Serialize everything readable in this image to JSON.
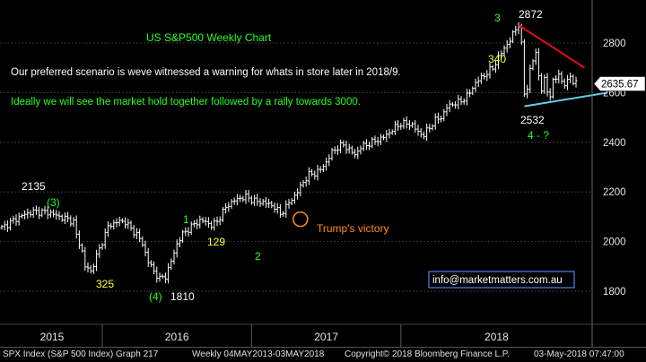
{
  "chart_data": {
    "type": "ohlc",
    "title": "US S&P500 Weekly Chart",
    "ylim": [
      1700,
      2920
    ],
    "yticks": [
      1800,
      2000,
      2200,
      2400,
      2600,
      2800
    ],
    "xrange": [
      0,
      262
    ],
    "years": [
      {
        "label": "2015",
        "start": 0,
        "end": 35
      },
      {
        "label": "2016",
        "start": 35,
        "end": 87
      },
      {
        "label": "2017",
        "start": 87,
        "end": 139
      },
      {
        "label": "2018",
        "start": 139,
        "end": 262
      }
    ],
    "price_label": "2635.67",
    "path_points": [
      [
        0,
        2055
      ],
      [
        4,
        2085
      ],
      [
        8,
        2110
      ],
      [
        11,
        2120
      ],
      [
        14,
        2120
      ],
      [
        17,
        2115
      ],
      [
        20,
        2100
      ],
      [
        23,
        2090
      ],
      [
        25,
        2080
      ],
      [
        26,
        2025
      ],
      [
        28,
        1960
      ],
      [
        29,
        1900
      ],
      [
        31,
        1880
      ],
      [
        33,
        1940
      ],
      [
        35,
        2000
      ],
      [
        37,
        2060
      ],
      [
        40,
        2080
      ],
      [
        43,
        2080
      ],
      [
        45,
        2050
      ],
      [
        47,
        2030
      ],
      [
        49,
        1990
      ],
      [
        51,
        1920
      ],
      [
        53,
        1880
      ],
      [
        55,
        1850
      ],
      [
        57,
        1860
      ],
      [
        59,
        1920
      ],
      [
        61,
        1990
      ],
      [
        63,
        2030
      ],
      [
        65,
        2050
      ],
      [
        67,
        2070
      ],
      [
        69,
        2085
      ],
      [
        71,
        2080
      ],
      [
        73,
        2065
      ],
      [
        75,
        2080
      ],
      [
        77,
        2120
      ],
      [
        79,
        2150
      ],
      [
        81,
        2165
      ],
      [
        83,
        2175
      ],
      [
        85,
        2180
      ],
      [
        87,
        2170
      ],
      [
        89,
        2160
      ],
      [
        91,
        2160
      ],
      [
        93,
        2150
      ],
      [
        95,
        2140
      ],
      [
        97,
        2110
      ],
      [
        99,
        2140
      ],
      [
        101,
        2170
      ],
      [
        103,
        2200
      ],
      [
        105,
        2240
      ],
      [
        107,
        2270
      ],
      [
        109,
        2275
      ],
      [
        111,
        2290
      ],
      [
        113,
        2320
      ],
      [
        115,
        2360
      ],
      [
        117,
        2380
      ],
      [
        119,
        2390
      ],
      [
        121,
        2370
      ],
      [
        123,
        2350
      ],
      [
        125,
        2380
      ],
      [
        127,
        2390
      ],
      [
        129,
        2400
      ],
      [
        131,
        2410
      ],
      [
        133,
        2420
      ],
      [
        135,
        2440
      ],
      [
        137,
        2460
      ],
      [
        139,
        2475
      ],
      [
        141,
        2475
      ],
      [
        143,
        2470
      ],
      [
        145,
        2440
      ],
      [
        147,
        2430
      ],
      [
        149,
        2460
      ],
      [
        151,
        2490
      ],
      [
        153,
        2500
      ],
      [
        155,
        2540
      ],
      [
        157,
        2555
      ],
      [
        159,
        2560
      ],
      [
        161,
        2575
      ],
      [
        163,
        2600
      ],
      [
        165,
        2640
      ],
      [
        167,
        2660
      ],
      [
        169,
        2680
      ],
      [
        171,
        2700
      ],
      [
        173,
        2740
      ],
      [
        175,
        2780
      ],
      [
        177,
        2810
      ],
      [
        179,
        2860
      ],
      [
        180,
        2872
      ],
      [
        181,
        2790
      ],
      [
        182,
        2600
      ],
      [
        183,
        2620
      ],
      [
        184,
        2690
      ],
      [
        185,
        2730
      ],
      [
        186,
        2760
      ],
      [
        187,
        2670
      ],
      [
        188,
        2610
      ],
      [
        189,
        2650
      ],
      [
        190,
        2610
      ],
      [
        191,
        2590
      ],
      [
        192,
        2640
      ],
      [
        193,
        2660
      ],
      [
        194,
        2680
      ],
      [
        195,
        2640
      ],
      [
        196,
        2630
      ],
      [
        197,
        2650
      ],
      [
        198,
        2670
      ],
      [
        199,
        2640
      ],
      [
        200,
        2636
      ]
    ],
    "red_trendline": [
      [
        180,
        2872
      ],
      [
        203,
        2700
      ]
    ],
    "cyan_trendline": [
      [
        182,
        2545
      ],
      [
        211,
        2600
      ]
    ],
    "orange_circle": {
      "x": 104,
      "y": 2090
    },
    "annotations": {
      "title": "US S&P500 Weekly Chart",
      "scenario_line": "Our preferred scenario is weve witnessed a warning for whats in store later in 2018/9.",
      "rally_line": "Ideally we will see the market hold together followed by a rally towards 3000.",
      "high_2135": "2135",
      "wave_3_paren": "(3)",
      "low_325": "325",
      "wave_4_paren": "(4)",
      "low_1810": "1810",
      "wave_1": "1",
      "low_129": "129",
      "wave_2": "2",
      "trump": "Trump's victory",
      "wave_3_top": "3",
      "high_2872": "2872",
      "count_340": "340",
      "low_2532": "2532",
      "wave_4_q": "4 - ?",
      "email": "info@marketmatters.com.au"
    },
    "colors": {
      "price": "#ffffff",
      "grid": "#3a3a3a",
      "axis_text": "#e6e6e6",
      "green": "#22ff22",
      "yellow": "#ffff33",
      "orange": "#ff8c1a",
      "red": "#dd1111",
      "cyan": "#66ccee",
      "label_white": "#ffffff"
    }
  },
  "footer": {
    "ticker": "SPX Index (S&P 500 Index) Graph 217",
    "range": "Weekly 04MAY2013-03MAY2018",
    "copyright": "Copyright© 2018 Bloomberg Finance L.P.",
    "timestamp": "03-May-2018 07:47:00"
  }
}
